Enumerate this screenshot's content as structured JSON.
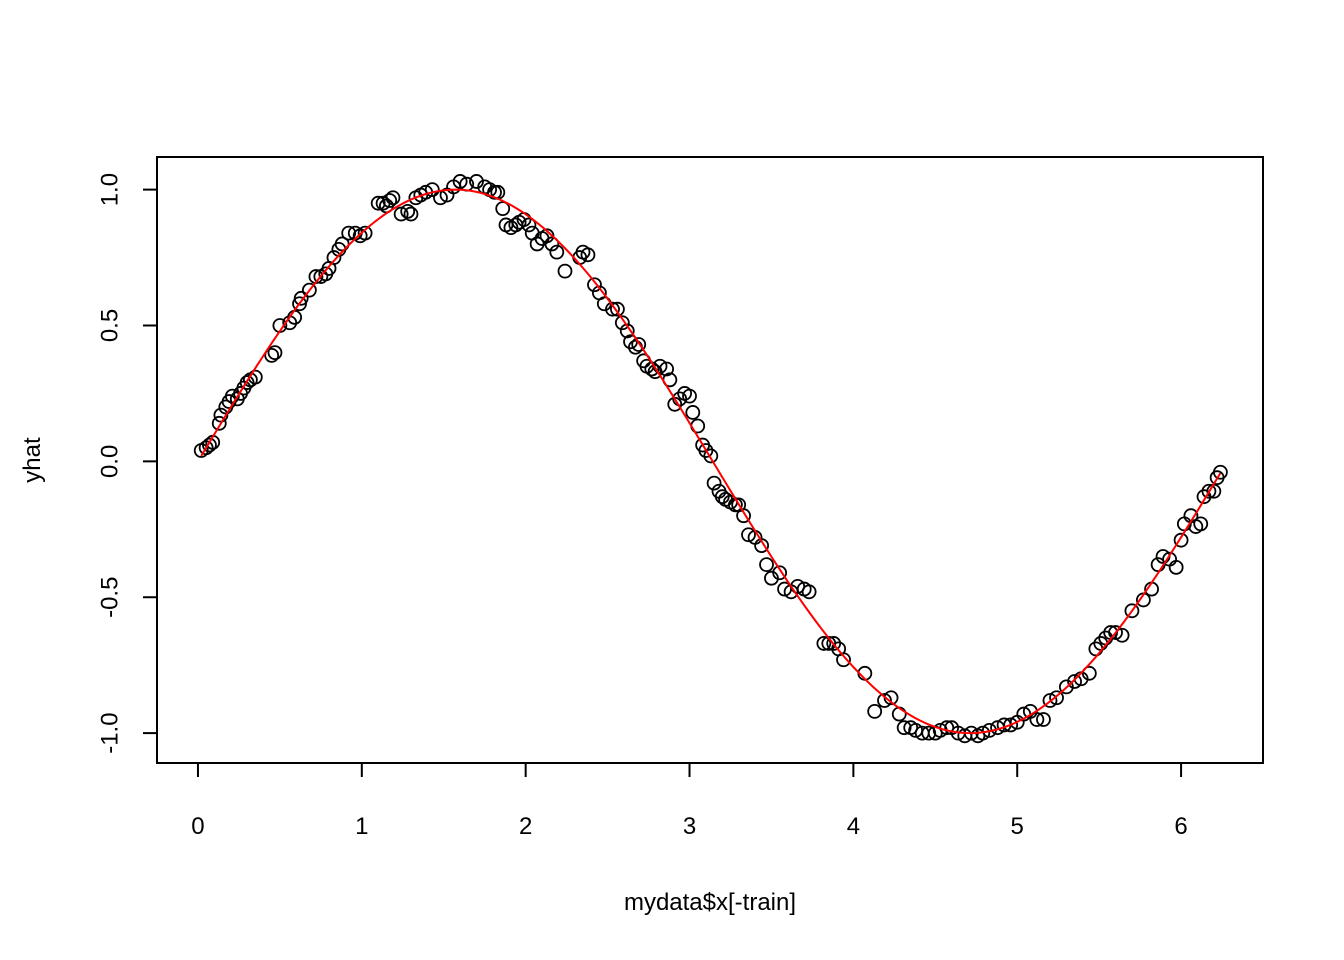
{
  "chart_data": {
    "type": "scatter",
    "title": "",
    "xlabel": "mydata$x[-train]",
    "ylabel": "yhat",
    "xlim": [
      -0.25,
      6.5
    ],
    "ylim": [
      -1.11,
      1.12
    ],
    "xticks": [
      0,
      1,
      2,
      3,
      4,
      5,
      6
    ],
    "xtick_labels": [
      "0",
      "1",
      "2",
      "3",
      "4",
      "5",
      "6"
    ],
    "yticks": [
      -1.0,
      -0.5,
      0.0,
      0.5,
      1.0
    ],
    "ytick_labels": [
      "-1.0",
      "-0.5",
      "0.0",
      "0.5",
      "1.0"
    ],
    "grid": false,
    "legend": "none",
    "colors": {
      "points": "#000000",
      "fit_line": "#ff0000"
    },
    "series": [
      {
        "kind": "points",
        "marker": "open-circle",
        "x": [
          0.02,
          0.05,
          0.07,
          0.09,
          0.13,
          0.14,
          0.17,
          0.19,
          0.21,
          0.24,
          0.26,
          0.28,
          0.3,
          0.32,
          0.35,
          0.45,
          0.47,
          0.5,
          0.56,
          0.59,
          0.62,
          0.63,
          0.68,
          0.72,
          0.75,
          0.78,
          0.8,
          0.83,
          0.86,
          0.88,
          0.92,
          0.96,
          0.99,
          1.02,
          1.1,
          1.13,
          1.15,
          1.17,
          1.19,
          1.24,
          1.28,
          1.3,
          1.33,
          1.36,
          1.39,
          1.43,
          1.48,
          1.52,
          1.56,
          1.6,
          1.64,
          1.7,
          1.75,
          1.78,
          1.81,
          1.83,
          1.86,
          1.88,
          1.91,
          1.94,
          1.96,
          1.99,
          2.02,
          2.04,
          2.07,
          2.1,
          2.13,
          2.16,
          2.19,
          2.24,
          2.33,
          2.35,
          2.38,
          2.42,
          2.45,
          2.48,
          2.53,
          2.56,
          2.59,
          2.62,
          2.64,
          2.67,
          2.69,
          2.72,
          2.74,
          2.77,
          2.79,
          2.82,
          2.86,
          2.88,
          2.91,
          2.94,
          2.97,
          3.0,
          3.02,
          3.05,
          3.08,
          3.1,
          3.13,
          3.15,
          3.18,
          3.2,
          3.22,
          3.25,
          3.28,
          3.3,
          3.33,
          3.36,
          3.4,
          3.44,
          3.47,
          3.5,
          3.55,
          3.58,
          3.62,
          3.66,
          3.7,
          3.73,
          3.82,
          3.85,
          3.88,
          3.91,
          3.94,
          4.07,
          4.13,
          4.19,
          4.23,
          4.28,
          4.31,
          4.35,
          4.38,
          4.42,
          4.46,
          4.5,
          4.53,
          4.57,
          4.6,
          4.64,
          4.68,
          4.72,
          4.76,
          4.79,
          4.83,
          4.88,
          4.92,
          4.96,
          5.0,
          5.04,
          5.08,
          5.12,
          5.16,
          5.2,
          5.24,
          5.3,
          5.35,
          5.39,
          5.44,
          5.48,
          5.51,
          5.54,
          5.57,
          5.6,
          5.64,
          5.7,
          5.77,
          5.82,
          5.86,
          5.89,
          5.93,
          5.97,
          6.0,
          6.02,
          6.06,
          6.09,
          6.12,
          6.14,
          6.17,
          6.2,
          6.22,
          6.24
        ],
        "y": [
          0.04,
          0.05,
          0.06,
          0.07,
          0.14,
          0.17,
          0.2,
          0.22,
          0.24,
          0.23,
          0.25,
          0.27,
          0.29,
          0.3,
          0.31,
          0.39,
          0.4,
          0.5,
          0.51,
          0.53,
          0.58,
          0.6,
          0.63,
          0.68,
          0.68,
          0.69,
          0.71,
          0.75,
          0.78,
          0.8,
          0.84,
          0.84,
          0.83,
          0.84,
          0.95,
          0.95,
          0.94,
          0.96,
          0.97,
          0.91,
          0.92,
          0.91,
          0.97,
          0.98,
          0.99,
          1.0,
          0.97,
          0.98,
          1.01,
          1.03,
          1.02,
          1.03,
          1.01,
          1.0,
          0.99,
          0.99,
          0.93,
          0.87,
          0.86,
          0.87,
          0.88,
          0.89,
          0.87,
          0.84,
          0.8,
          0.82,
          0.83,
          0.8,
          0.77,
          0.7,
          0.75,
          0.77,
          0.76,
          0.65,
          0.62,
          0.58,
          0.56,
          0.56,
          0.51,
          0.48,
          0.44,
          0.42,
          0.43,
          0.37,
          0.35,
          0.34,
          0.33,
          0.35,
          0.34,
          0.3,
          0.21,
          0.23,
          0.25,
          0.24,
          0.18,
          0.13,
          0.06,
          0.04,
          0.02,
          -0.08,
          -0.11,
          -0.13,
          -0.14,
          -0.15,
          -0.16,
          -0.16,
          -0.2,
          -0.27,
          -0.28,
          -0.31,
          -0.38,
          -0.43,
          -0.41,
          -0.47,
          -0.48,
          -0.46,
          -0.47,
          -0.48,
          -0.67,
          -0.67,
          -0.67,
          -0.69,
          -0.73,
          -0.78,
          -0.92,
          -0.88,
          -0.87,
          -0.93,
          -0.98,
          -0.98,
          -0.99,
          -1.0,
          -1.0,
          -1.0,
          -0.99,
          -0.98,
          -0.98,
          -1.0,
          -1.01,
          -1.0,
          -1.01,
          -1.0,
          -0.99,
          -0.98,
          -0.97,
          -0.97,
          -0.96,
          -0.93,
          -0.92,
          -0.95,
          -0.95,
          -0.88,
          -0.87,
          -0.83,
          -0.81,
          -0.8,
          -0.78,
          -0.69,
          -0.67,
          -0.65,
          -0.63,
          -0.63,
          -0.64,
          -0.55,
          -0.51,
          -0.47,
          -0.38,
          -0.35,
          -0.36,
          -0.39,
          -0.29,
          -0.23,
          -0.2,
          -0.24,
          -0.23,
          -0.13,
          -0.11,
          -0.11,
          -0.06,
          -0.04
        ]
      },
      {
        "kind": "line",
        "function": "sin",
        "x_range": [
          0.02,
          6.24
        ]
      }
    ]
  }
}
